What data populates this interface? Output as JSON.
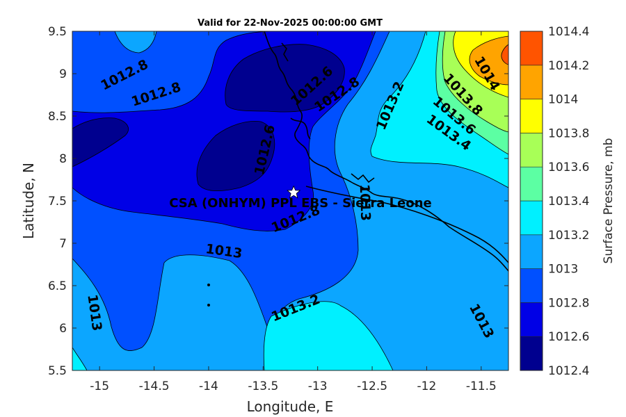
{
  "title": "Valid for 22-Nov-2025 00:00:00 GMT",
  "x_axis": {
    "label": "Longitude, E",
    "range": [
      -15.25,
      -11.25
    ],
    "ticks": [
      "-15",
      "-14.5",
      "-14",
      "-13.5",
      "-13",
      "-12.5",
      "-12",
      "-11.5"
    ],
    "tick_values": [
      -15,
      -14.5,
      -14,
      -13.5,
      -13,
      -12.5,
      -12,
      -11.5
    ]
  },
  "y_axis": {
    "label": "Latitude, N",
    "range": [
      5.5,
      9.5
    ],
    "ticks": [
      "5.5",
      "6",
      "6.5",
      "7",
      "7.5",
      "8",
      "8.5",
      "9",
      "9.5"
    ],
    "tick_values": [
      5.5,
      6,
      6.5,
      7,
      7.5,
      8,
      8.5,
      9,
      9.5
    ]
  },
  "colorbar": {
    "label": "Surface Pressure, mb",
    "levels": [
      "1012.4",
      "1012.6",
      "1012.8",
      "1013",
      "1013.2",
      "1013.4",
      "1013.6",
      "1013.8",
      "1014",
      "1014.2",
      "1014.4"
    ],
    "colors": [
      "#00008f",
      "#0000e6",
      "#0050ff",
      "#0ca6ff",
      "#00f0ff",
      "#5cffa3",
      "#a8ff57",
      "#ffff00",
      "#ffa400",
      "#ff5400",
      "#ff0000"
    ]
  },
  "station": {
    "name": "CSA (ONHYM) PPL EBS  - Sierra Leone",
    "lon": -13.22,
    "lat": 7.6
  },
  "contour_labels": [
    {
      "text": "1012.8",
      "lon": -14.77,
      "lat": 8.98,
      "rot": -27
    },
    {
      "text": "1012.8",
      "lon": -14.48,
      "lat": 8.75,
      "rot": -18
    },
    {
      "text": "1012.6",
      "lon": -13.05,
      "lat": 8.85,
      "rot": -42
    },
    {
      "text": "1012.8",
      "lon": -12.82,
      "lat": 8.75,
      "rot": -34
    },
    {
      "text": "1012.6",
      "lon": -13.48,
      "lat": 8.1,
      "rot": -77
    },
    {
      "text": "1012.8",
      "lon": -13.2,
      "lat": 7.28,
      "rot": -22
    },
    {
      "text": "1013",
      "lon": -13.86,
      "lat": 6.9,
      "rot": 8
    },
    {
      "text": "1013",
      "lon": -15.05,
      "lat": 6.18,
      "rot": 82
    },
    {
      "text": "1013.2",
      "lon": -13.2,
      "lat": 6.23,
      "rot": -22
    },
    {
      "text": "1013.2",
      "lon": -12.33,
      "lat": 8.62,
      "rot": -67
    },
    {
      "text": "1013",
      "lon": -12.57,
      "lat": 7.48,
      "rot": 88
    },
    {
      "text": "1013",
      "lon": -11.5,
      "lat": 6.08,
      "rot": 62
    },
    {
      "text": "1014",
      "lon": -11.45,
      "lat": 9.0,
      "rot": 60
    },
    {
      "text": "1013.8",
      "lon": -11.67,
      "lat": 8.75,
      "rot": 48
    },
    {
      "text": "1013.6",
      "lon": -11.75,
      "lat": 8.5,
      "rot": 40
    },
    {
      "text": "1013.4",
      "lon": -11.8,
      "lat": 8.3,
      "rot": 36
    }
  ]
}
